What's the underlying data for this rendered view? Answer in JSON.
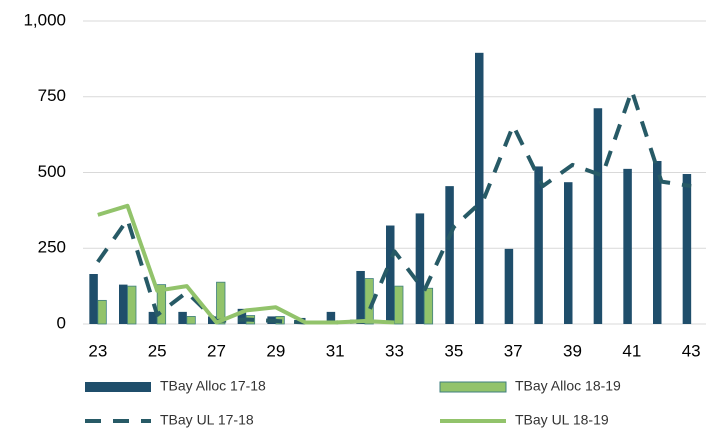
{
  "chart_data": {
    "type": "bar-line",
    "categories": [
      "23",
      null,
      "25",
      null,
      "27",
      null,
      "29",
      null,
      "31",
      null,
      "33",
      null,
      "35",
      null,
      "37",
      null,
      "39",
      null,
      "41",
      null,
      "43"
    ],
    "series": [
      {
        "name": "TBay Alloc 17-18",
        "kind": "bar",
        "color": "#1f4e6b",
        "values": [
          165,
          130,
          40,
          40,
          25,
          50,
          25,
          20,
          40,
          175,
          325,
          365,
          455,
          895,
          248,
          520,
          468,
          712,
          512,
          538,
          495
        ]
      },
      {
        "name": "TBay Alloc 18-19",
        "kind": "bar",
        "color": "#92c36b",
        "values": [
          78,
          125,
          130,
          25,
          138,
          28,
          25,
          5,
          0,
          150,
          125,
          118,
          null,
          null,
          null,
          null,
          null,
          null,
          null,
          null,
          null
        ]
      },
      {
        "name": "TBay UL 17-18",
        "kind": "line",
        "dashed": true,
        "color": "#275a66",
        "values": [
          205,
          345,
          30,
          105,
          10,
          15,
          10,
          5,
          5,
          10,
          240,
          110,
          320,
          410,
          655,
          455,
          525,
          490,
          770,
          470,
          455
        ]
      },
      {
        "name": "TBay UL 18-19",
        "kind": "line",
        "dashed": false,
        "color": "#92c36b",
        "values": [
          360,
          390,
          110,
          125,
          5,
          45,
          55,
          5,
          5,
          10,
          5,
          null,
          null,
          null,
          null,
          null,
          null,
          null,
          null,
          null,
          null
        ]
      }
    ],
    "ylim": [
      0,
      1000
    ],
    "yticks": [
      0,
      250,
      500,
      750,
      {
        "value": 1000,
        "label": "1,000"
      }
    ],
    "grid": true
  }
}
